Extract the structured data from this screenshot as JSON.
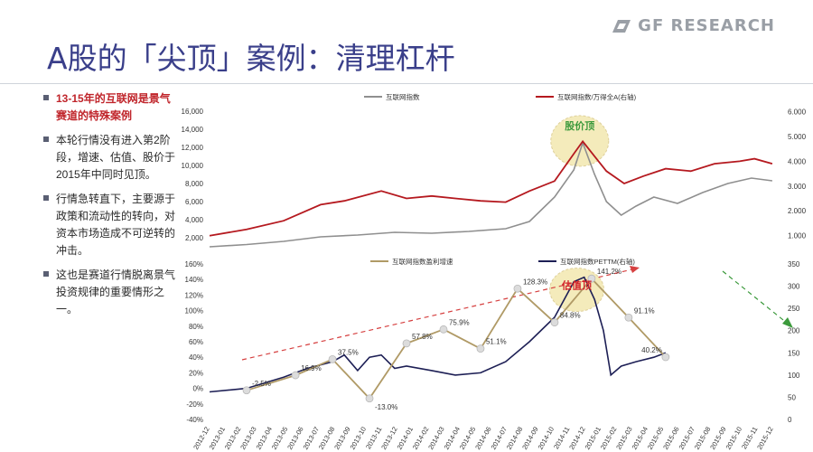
{
  "brand": {
    "logo_text": "GF RESEARCH",
    "icon": "gf-logo-icon"
  },
  "slide": {
    "title": "A股的「尖顶」案例：清理杠杆"
  },
  "bullets": [
    {
      "text": "13-15年的互联网是景气赛道的特殊案例",
      "highlight": true
    },
    {
      "text": "本轮行情没有进入第2阶段，增速、估值、股价于2015年中同时见顶。",
      "highlight": false
    },
    {
      "text": "行情急转直下，主要源于政策和流动性的转向，对资本市场造成不可逆转的冲击。",
      "highlight": false
    },
    {
      "text": "这也是赛道行情脱离景气投资规律的重要情形之一。",
      "highlight": false
    }
  ],
  "colors": {
    "title": "#3a3f8a",
    "gray": "#8f8f8f",
    "red": "#b5191f",
    "olive": "#b09a66",
    "navy": "#1d1f55",
    "ellipse_fill": "#f3e8b0",
    "ellipse_stroke": "#d9c88a",
    "green": "#3c9a3c",
    "red_text": "#d2232a"
  },
  "chart_data": [
    {
      "type": "line",
      "legend_position": "top",
      "y_left": {
        "ticks": [
          "2,000",
          "4,000",
          "6,000",
          "8,000",
          "10,000",
          "12,000",
          "14,000",
          "16,000"
        ],
        "range": [
          1000,
          16500
        ]
      },
      "y_right": {
        "ticks": [
          "1.000",
          "2.000",
          "3.000",
          "4.000",
          "5.000",
          "6.000"
        ],
        "range": [
          0.55,
          6.2
        ]
      },
      "annotation": {
        "text": "股价顶",
        "x": 2015.42,
        "y": 5.0
      },
      "series": [
        {
          "name": "互联网指数",
          "axis": "left",
          "points": [
            [
              2012.92,
              1000
            ],
            [
              2013.17,
              1250
            ],
            [
              2013.42,
              1600
            ],
            [
              2013.67,
              2100
            ],
            [
              2013.92,
              2300
            ],
            [
              2014.17,
              2600
            ],
            [
              2014.42,
              2500
            ],
            [
              2014.67,
              2700
            ],
            [
              2014.92,
              3000
            ],
            [
              2015.08,
              3800
            ],
            [
              2015.25,
              6500
            ],
            [
              2015.38,
              9500
            ],
            [
              2015.44,
              12500
            ],
            [
              2015.52,
              9000
            ],
            [
              2015.6,
              6000
            ],
            [
              2015.7,
              4500
            ],
            [
              2015.8,
              5500
            ],
            [
              2015.92,
              6500
            ],
            [
              2016.08,
              5800
            ],
            [
              2016.25,
              7000
            ],
            [
              2016.42,
              8000
            ],
            [
              2016.58,
              8600
            ],
            [
              2016.72,
              8300
            ]
          ]
        },
        {
          "name": "互联网指数/万得全A(右轴)",
          "axis": "right",
          "points": [
            [
              2012.92,
              1.0
            ],
            [
              2013.17,
              1.25
            ],
            [
              2013.42,
              1.6
            ],
            [
              2013.67,
              2.25
            ],
            [
              2013.83,
              2.4
            ],
            [
              2014.08,
              2.8
            ],
            [
              2014.25,
              2.5
            ],
            [
              2014.42,
              2.6
            ],
            [
              2014.58,
              2.5
            ],
            [
              2014.75,
              2.4
            ],
            [
              2014.92,
              2.35
            ],
            [
              2015.08,
              2.8
            ],
            [
              2015.25,
              3.2
            ],
            [
              2015.38,
              4.3
            ],
            [
              2015.44,
              4.8
            ],
            [
              2015.52,
              4.2
            ],
            [
              2015.6,
              3.6
            ],
            [
              2015.72,
              3.1
            ],
            [
              2015.85,
              3.4
            ],
            [
              2016.0,
              3.7
            ],
            [
              2016.17,
              3.6
            ],
            [
              2016.33,
              3.9
            ],
            [
              2016.5,
              4.0
            ],
            [
              2016.6,
              4.1
            ],
            [
              2016.72,
              3.9
            ]
          ]
        }
      ]
    },
    {
      "type": "line",
      "legend_position": "top",
      "categories": [
        "2012-12",
        "2013-01",
        "2013-02",
        "2013-03",
        "2013-04",
        "2013-05",
        "2013-06",
        "2013-07",
        "2013-08",
        "2013-09",
        "2013-10",
        "2013-11",
        "2013-12",
        "2014-01",
        "2014-02",
        "2014-03",
        "2014-04",
        "2014-05",
        "2014-06",
        "2014-07",
        "2014-08",
        "2014-09",
        "2014-10",
        "2014-11",
        "2014-12",
        "2015-01",
        "2015-02",
        "2015-03",
        "2015-04",
        "2015-05",
        "2015-06",
        "2015-07",
        "2015-08",
        "2015-09",
        "2015-10",
        "2015-11",
        "2015-12"
      ],
      "y_left": {
        "ticks": [
          "-40%",
          "-20%",
          "0%",
          "20%",
          "40%",
          "60%",
          "80%",
          "100%",
          "120%",
          "140%",
          "160%"
        ],
        "range": [
          -40,
          160
        ]
      },
      "y_right": {
        "ticks": [
          "0",
          "50",
          "100",
          "150",
          "200",
          "250",
          "300",
          "350"
        ],
        "range": [
          0,
          350
        ]
      },
      "annotation": {
        "text": "估值顶",
        "x": 2015.4,
        "y": 300
      },
      "series": [
        {
          "name": "互联网指数盈利增速",
          "axis": "left",
          "points": [
            [
              2013.17,
              -2.5
            ],
            [
              2013.5,
              16.9
            ],
            [
              2013.75,
              37.5
            ],
            [
              2014.0,
              -13.0
            ],
            [
              2014.25,
              57.8
            ],
            [
              2014.5,
              75.9
            ],
            [
              2014.75,
              51.1
            ],
            [
              2015.0,
              128.3
            ],
            [
              2015.25,
              84.8
            ],
            [
              2015.5,
              141.2
            ],
            [
              2015.75,
              91.1
            ],
            [
              2016.0,
              40.2
            ]
          ],
          "labels": [
            "-2.5%",
            "16.9%",
            "37.5%",
            "-13.0%",
            "57.8%",
            "75.9%",
            "51.1%",
            "128.3%",
            "84.8%",
            "141.2%",
            "91.1%",
            "40.2%"
          ]
        },
        {
          "name": "互联网指数PETTM(右轴)",
          "axis": "right",
          "points": [
            [
              2012.92,
              62
            ],
            [
              2013.17,
              70
            ],
            [
              2013.42,
              95
            ],
            [
              2013.58,
              115
            ],
            [
              2013.75,
              130
            ],
            [
              2013.83,
              145
            ],
            [
              2013.92,
              110
            ],
            [
              2014.0,
              140
            ],
            [
              2014.08,
              145
            ],
            [
              2014.17,
              115
            ],
            [
              2014.25,
              120
            ],
            [
              2014.42,
              110
            ],
            [
              2014.58,
              100
            ],
            [
              2014.75,
              105
            ],
            [
              2014.92,
              130
            ],
            [
              2015.08,
              175
            ],
            [
              2015.25,
              230
            ],
            [
              2015.38,
              310
            ],
            [
              2015.45,
              320
            ],
            [
              2015.52,
              270
            ],
            [
              2015.58,
              200
            ],
            [
              2015.63,
              100
            ],
            [
              2015.7,
              120
            ],
            [
              2015.8,
              130
            ],
            [
              2015.92,
              140
            ],
            [
              2016.0,
              150
            ]
          ]
        }
      ]
    }
  ]
}
